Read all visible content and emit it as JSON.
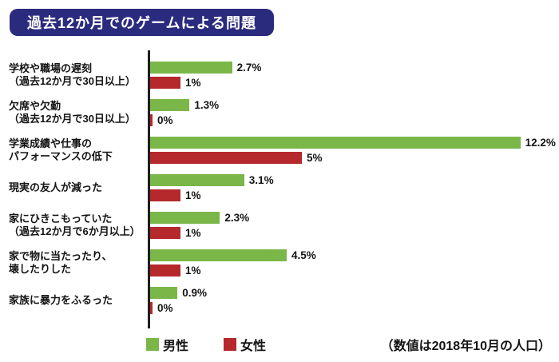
{
  "title_badge": "過去12か月でのゲームによる問題",
  "colors": {
    "title_bg": "#2b2b7e",
    "male": "#7ab648",
    "female": "#b5282c",
    "axis": "#1e1e1e",
    "text": "#141414"
  },
  "chart_data": {
    "type": "bar",
    "orientation": "horizontal",
    "title": "過去12か月でのゲームによる問題",
    "categories": [
      [
        "学校や職場の遅刻",
        "（過去12か月で30日以上）"
      ],
      [
        "欠席や欠勤",
        "（過去12か月で30日以上）"
      ],
      [
        "学業成績や仕事の",
        "パフォーマンスの低下"
      ],
      [
        "現実の友人が減った"
      ],
      [
        "家にひきこもっていた",
        "（過去12か月で6か月以上）"
      ],
      [
        "家で物に当たったり、",
        "壊したりした"
      ],
      [
        "家族に暴力をふるった"
      ]
    ],
    "series": [
      {
        "name": "男性",
        "color": "#7ab648",
        "values": [
          2.7,
          1.3,
          12.2,
          3.1,
          2.3,
          4.5,
          0.9
        ],
        "labels": [
          "2.7%",
          "1.3%",
          "12.2%",
          "3.1%",
          "2.3%",
          "4.5%",
          "0.9%"
        ]
      },
      {
        "name": "女性",
        "color": "#b5282c",
        "values": [
          1,
          0,
          5,
          1,
          1,
          1,
          0
        ],
        "labels": [
          "1%",
          "0%",
          "5%",
          "1%",
          "1%",
          "1%",
          "0%"
        ]
      }
    ],
    "xlim": [
      0,
      12.9
    ],
    "grid": false,
    "legend_position": "bottom",
    "note": "（数値は2018年10月の人口）"
  }
}
